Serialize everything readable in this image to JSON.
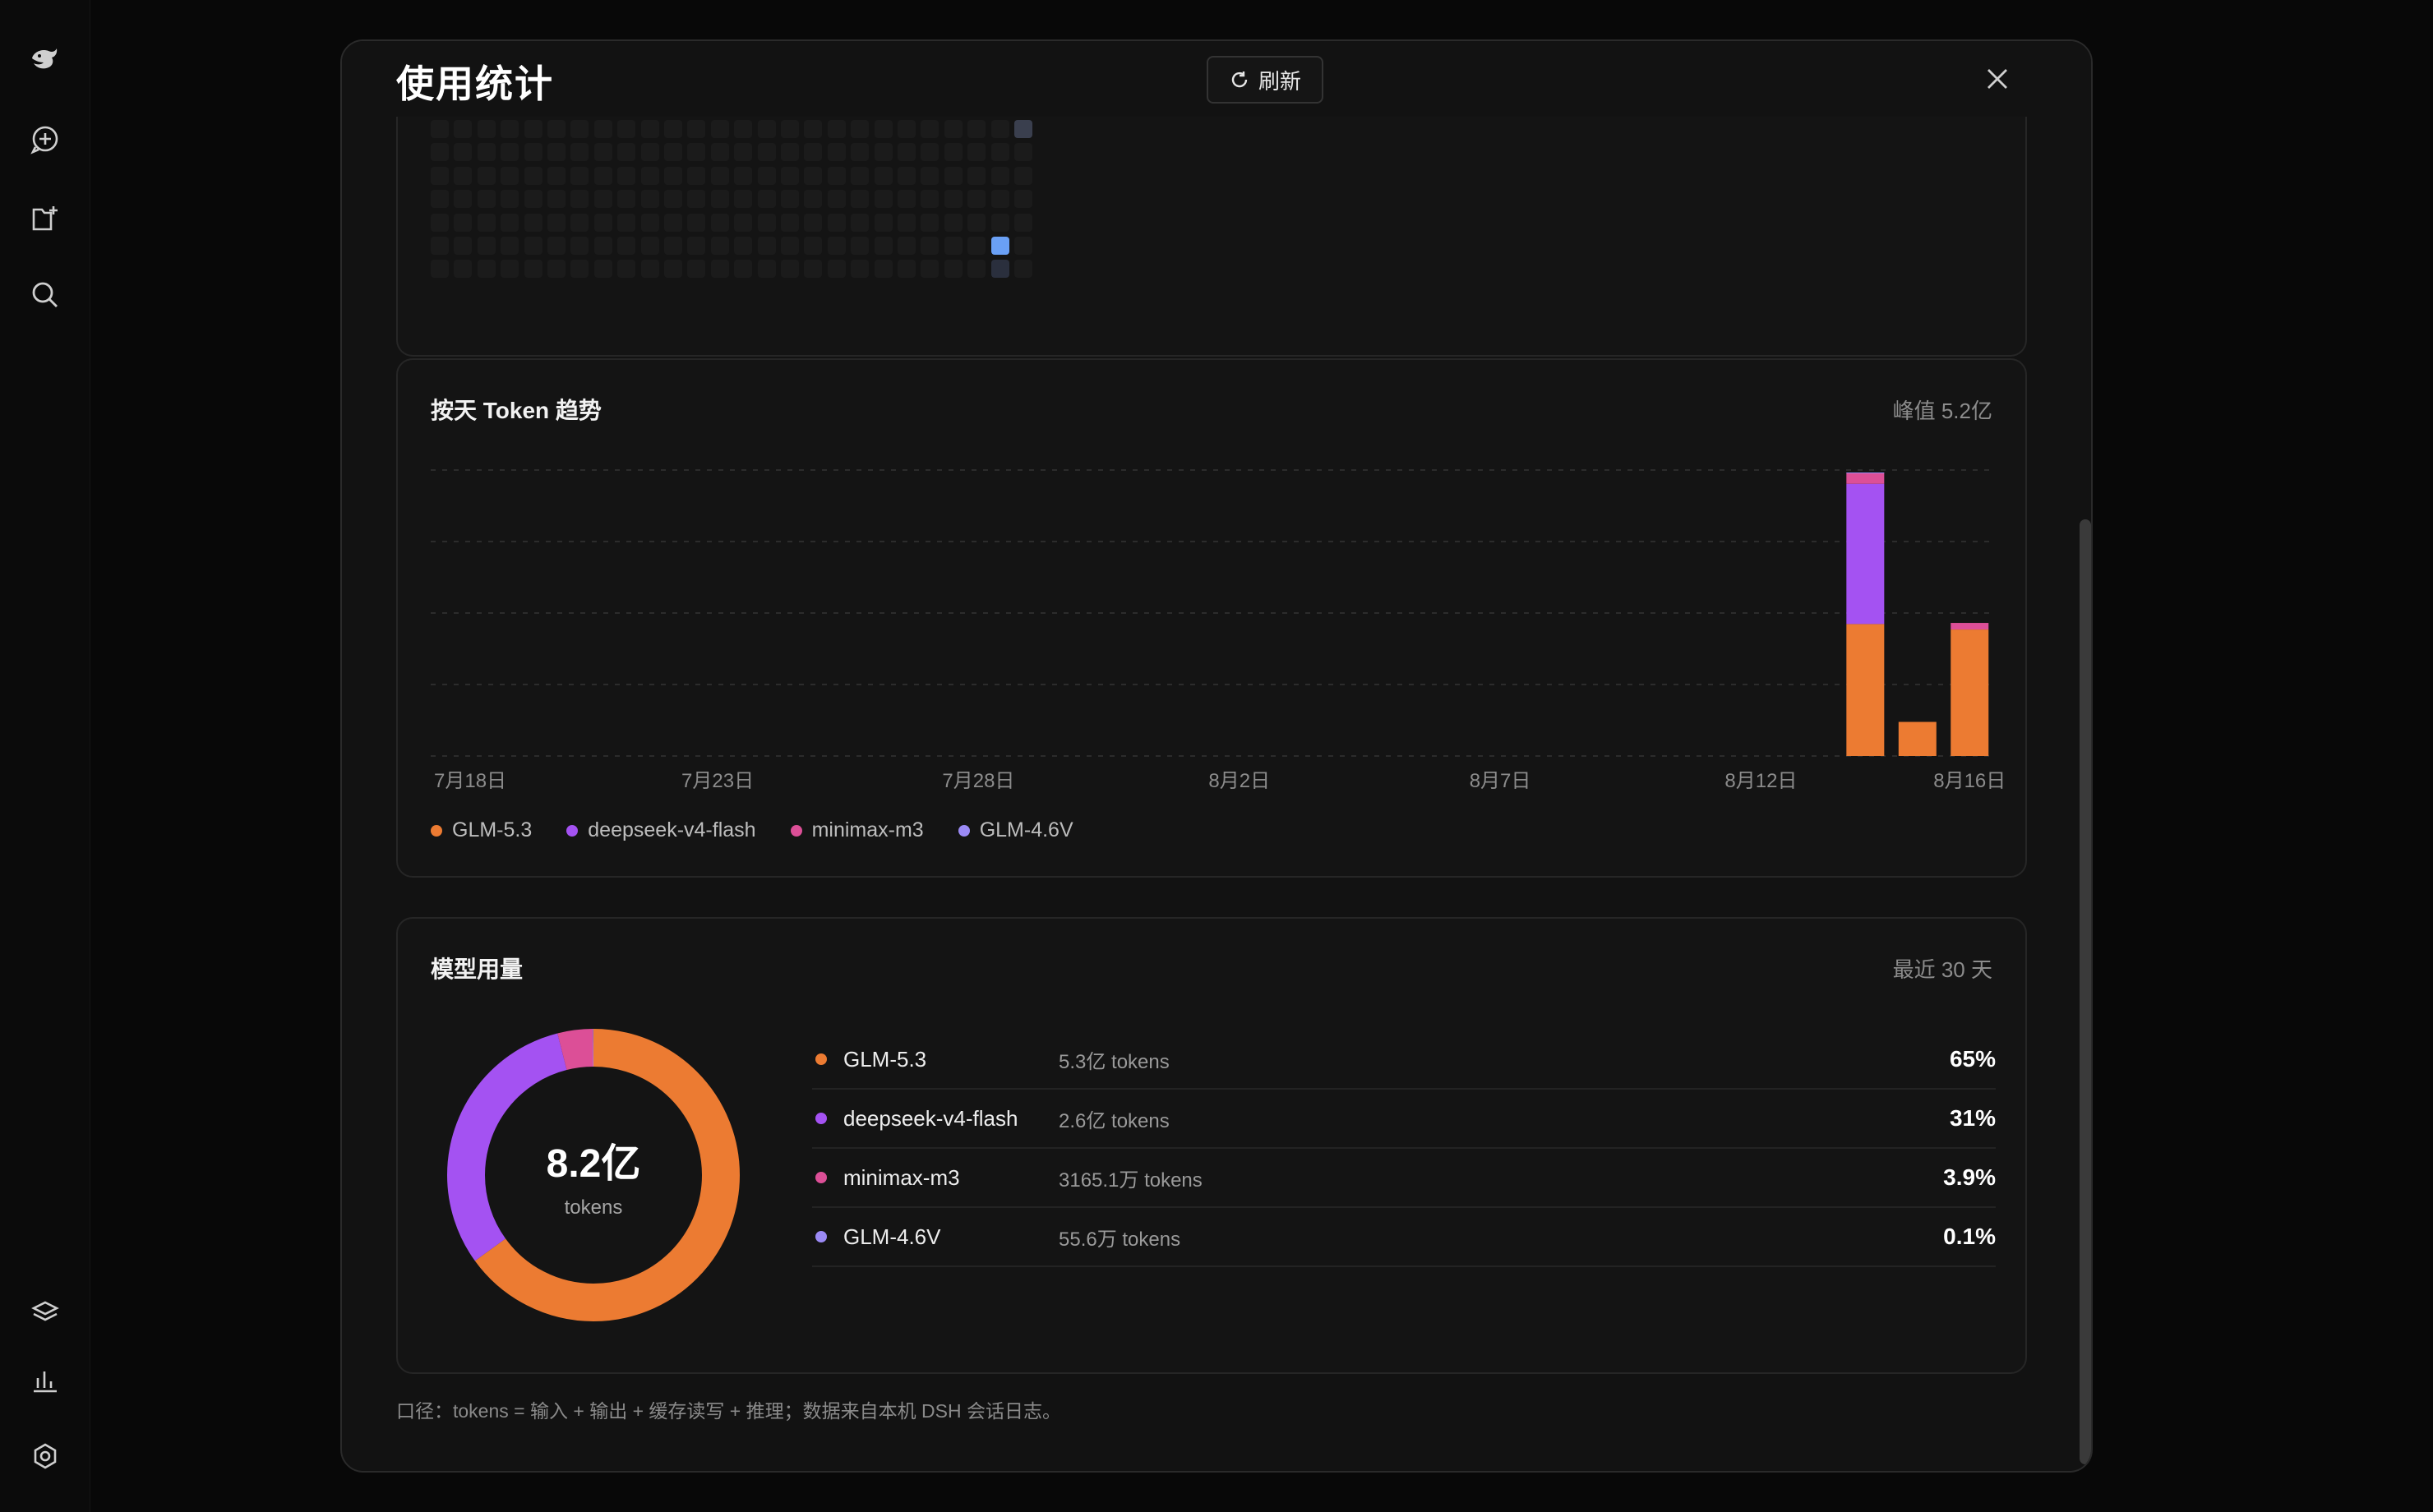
{
  "modal": {
    "title": "使用统计",
    "refresh_label": "刷新"
  },
  "sidebar": {
    "icons": [
      "whale-logo-icon",
      "new-chat-icon",
      "new-project-icon",
      "search-icon",
      "layers-icon",
      "stats-icon",
      "settings-icon"
    ]
  },
  "trend": {
    "title": "按天 Token 趋势",
    "peak": "峰值 5.2亿"
  },
  "chart_data": {
    "type": "bar",
    "stacked": true,
    "x_tick_labels": [
      "7月18日",
      "7月23日",
      "7月28日",
      "8月2日",
      "8月7日",
      "8月12日",
      "8月16日"
    ],
    "categories": [
      "7月18日",
      "7月19日",
      "7月20日",
      "7月21日",
      "7月22日",
      "7月23日",
      "7月24日",
      "7月25日",
      "7月26日",
      "7月27日",
      "7月28日",
      "7月29日",
      "7月30日",
      "7月31日",
      "8月1日",
      "8月2日",
      "8月3日",
      "8月4日",
      "8月5日",
      "8月6日",
      "8月7日",
      "8月8日",
      "8月9日",
      "8月10日",
      "8月11日",
      "8月12日",
      "8月13日",
      "8月14日",
      "8月15日",
      "8月16日"
    ],
    "unit": "亿 tokens",
    "ylim": [
      0,
      5.2
    ],
    "series": [
      {
        "name": "GLM-5.3",
        "color": "#ec7b32",
        "values": [
          0,
          0,
          0,
          0,
          0,
          0,
          0,
          0,
          0,
          0,
          0,
          0,
          0,
          0,
          0,
          0,
          0,
          0,
          0,
          0,
          0,
          0,
          0,
          0,
          0,
          0,
          0,
          2.4,
          0.62,
          2.3
        ]
      },
      {
        "name": "deepseek-v4-flash",
        "color": "#a452f2",
        "values": [
          0,
          0,
          0,
          0,
          0,
          0,
          0,
          0,
          0,
          0,
          0,
          0,
          0,
          0,
          0,
          0,
          0,
          0,
          0,
          0,
          0,
          0,
          0,
          0,
          0,
          0,
          0,
          2.55,
          0,
          0
        ]
      },
      {
        "name": "minimax-m3",
        "color": "#dc4f97",
        "values": [
          0,
          0,
          0,
          0,
          0,
          0,
          0,
          0,
          0,
          0,
          0,
          0,
          0,
          0,
          0,
          0,
          0,
          0,
          0,
          0,
          0,
          0,
          0,
          0,
          0,
          0,
          0,
          0.2,
          0,
          0.12
        ]
      },
      {
        "name": "GLM-4.6V",
        "color": "#9b8af5",
        "values": [
          0,
          0,
          0,
          0,
          0,
          0,
          0,
          0,
          0,
          0,
          0,
          0,
          0,
          0,
          0,
          0,
          0,
          0,
          0,
          0,
          0,
          0,
          0,
          0,
          0,
          0,
          0,
          0.005,
          0,
          0
        ]
      }
    ],
    "grid": true
  },
  "usage": {
    "title": "模型用量",
    "period": "最近 30 天",
    "total_value": "8.2亿",
    "total_unit": "tokens",
    "models": [
      {
        "name": "GLM-5.3",
        "tokens": "5.3亿 tokens",
        "pct": "65%",
        "share": 0.65,
        "color": "#ec7b32"
      },
      {
        "name": "deepseek-v4-flash",
        "tokens": "2.6亿 tokens",
        "pct": "31%",
        "share": 0.31,
        "color": "#a452f2"
      },
      {
        "name": "minimax-m3",
        "tokens": "3165.1万 tokens",
        "pct": "3.9%",
        "share": 0.039,
        "color": "#dc4f97"
      },
      {
        "name": "GLM-4.6V",
        "tokens": "55.6万 tokens",
        "pct": "0.1%",
        "share": 0.001,
        "color": "#9b8af5"
      }
    ]
  },
  "heatmap": {
    "active": [
      {
        "week": 25,
        "day": 0,
        "level": "low",
        "color": "#3a3f4e"
      },
      {
        "week": 24,
        "day": 5,
        "level": "high",
        "color": "#6aa0f5"
      },
      {
        "week": 24,
        "day": 6,
        "level": "low",
        "color": "#2a2f3d"
      }
    ]
  },
  "footnote": "口径：tokens = 输入 + 输出 + 缓存读写 + 推理；数据来自本机 DSH 会话日志。"
}
